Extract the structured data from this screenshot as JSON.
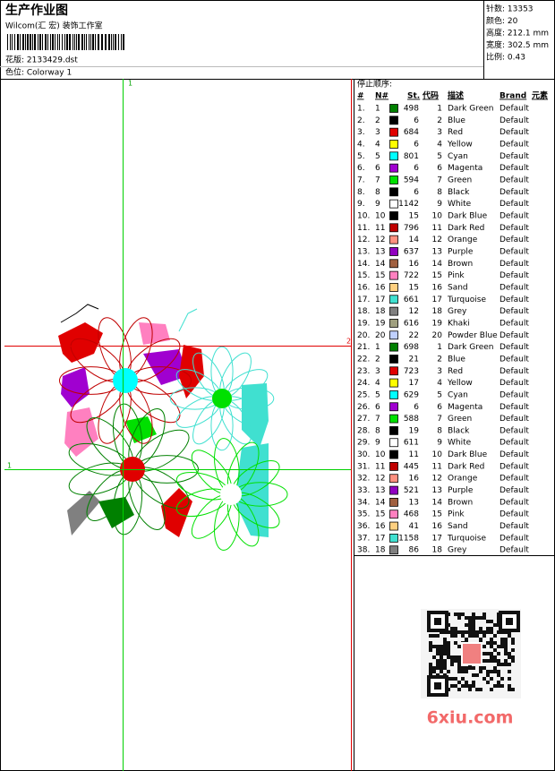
{
  "header": {
    "title": "生产作业图",
    "subtitle": "Wilcom(汇 宏) 装饰工作室",
    "design": "花版: 2133429.dst",
    "colorway": "色位: Colorway 1"
  },
  "info": [
    "针数: 13353",
    "颜色: 20",
    "高度: 212.1 mm",
    "宽度: 302.5 mm",
    "比例: 0.43"
  ],
  "preview": {
    "markers": [
      "1",
      "2",
      "1"
    ]
  },
  "table": {
    "caption": "停止顺序:",
    "columns": [
      "#",
      "N#",
      "St.",
      "代码",
      "描述",
      "Brand",
      "元素"
    ],
    "rows": [
      [
        "1.",
        "1",
        "#008000",
        498,
        "1",
        "Dark Green",
        "Default"
      ],
      [
        "2.",
        "2",
        "#000000",
        6,
        "2",
        "Blue",
        "Default"
      ],
      [
        "3.",
        "3",
        "#e00000",
        684,
        "3",
        "Red",
        "Default"
      ],
      [
        "4.",
        "4",
        "#ffff00",
        6,
        "4",
        "Yellow",
        "Default"
      ],
      [
        "5.",
        "5",
        "#00ffff",
        801,
        "5",
        "Cyan",
        "Default"
      ],
      [
        "6.",
        "6",
        "#a000d0",
        6,
        "6",
        "Magenta",
        "Default"
      ],
      [
        "7.",
        "7",
        "#00e000",
        594,
        "7",
        "Green",
        "Default"
      ],
      [
        "8.",
        "8",
        "#000000",
        6,
        "8",
        "Black",
        "Default"
      ],
      [
        "9.",
        "9",
        "#ffffff",
        1142,
        "9",
        "White",
        "Default"
      ],
      [
        "10.",
        "10",
        "#000000",
        15,
        "10",
        "Dark Blue",
        "Default"
      ],
      [
        "11.",
        "11",
        "#c00000",
        796,
        "11",
        "Dark Red",
        "Default"
      ],
      [
        "12.",
        "12",
        "#ff9080",
        14,
        "12",
        "Orange",
        "Default"
      ],
      [
        "13.",
        "13",
        "#9000c0",
        637,
        "13",
        "Purple",
        "Default"
      ],
      [
        "14.",
        "14",
        "#a06040",
        16,
        "14",
        "Brown",
        "Default"
      ],
      [
        "15.",
        "15",
        "#ff80c0",
        722,
        "15",
        "Pink",
        "Default"
      ],
      [
        "16.",
        "16",
        "#ffd080",
        15,
        "16",
        "Sand",
        "Default"
      ],
      [
        "17.",
        "17",
        "#40e0d0",
        661,
        "17",
        "Turquoise",
        "Default"
      ],
      [
        "18.",
        "18",
        "#808080",
        12,
        "18",
        "Grey",
        "Default"
      ],
      [
        "19.",
        "19",
        "#a0a080",
        616,
        "19",
        "Khaki",
        "Default"
      ],
      [
        "20.",
        "20",
        "#c0d0ff",
        22,
        "20",
        "Powder Blue",
        "Default"
      ],
      [
        "21.",
        "1",
        "#008000",
        698,
        "1",
        "Dark Green",
        "Default"
      ],
      [
        "22.",
        "2",
        "#000000",
        21,
        "2",
        "Blue",
        "Default"
      ],
      [
        "23.",
        "3",
        "#e00000",
        723,
        "3",
        "Red",
        "Default"
      ],
      [
        "24.",
        "4",
        "#ffff00",
        17,
        "4",
        "Yellow",
        "Default"
      ],
      [
        "25.",
        "5",
        "#00ffff",
        629,
        "5",
        "Cyan",
        "Default"
      ],
      [
        "26.",
        "6",
        "#a000d0",
        6,
        "6",
        "Magenta",
        "Default"
      ],
      [
        "27.",
        "7",
        "#00e000",
        588,
        "7",
        "Green",
        "Default"
      ],
      [
        "28.",
        "8",
        "#000000",
        19,
        "8",
        "Black",
        "Default"
      ],
      [
        "29.",
        "9",
        "#ffffff",
        611,
        "9",
        "White",
        "Default"
      ],
      [
        "30.",
        "10",
        "#000000",
        11,
        "10",
        "Dark Blue",
        "Default"
      ],
      [
        "31.",
        "11",
        "#c00000",
        445,
        "11",
        "Dark Red",
        "Default"
      ],
      [
        "32.",
        "12",
        "#ff9080",
        16,
        "12",
        "Orange",
        "Default"
      ],
      [
        "33.",
        "13",
        "#9000c0",
        521,
        "13",
        "Purple",
        "Default"
      ],
      [
        "34.",
        "14",
        "#a06040",
        13,
        "14",
        "Brown",
        "Default"
      ],
      [
        "35.",
        "15",
        "#ff80c0",
        468,
        "15",
        "Pink",
        "Default"
      ],
      [
        "36.",
        "16",
        "#ffd080",
        41,
        "16",
        "Sand",
        "Default"
      ],
      [
        "37.",
        "17",
        "#40e0d0",
        1158,
        "17",
        "Turquoise",
        "Default"
      ],
      [
        "38.",
        "18",
        "#808080",
        86,
        "18",
        "Grey",
        "Default"
      ]
    ]
  },
  "watermark": "6xiu.com"
}
